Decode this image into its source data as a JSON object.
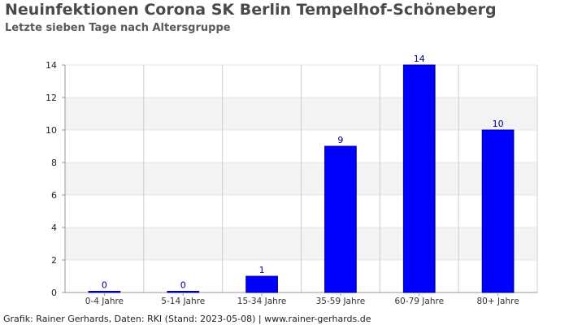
{
  "title": "Neuinfektionen Corona SK Berlin Tempelhof-Schöneberg",
  "subtitle": "Letzte sieben Tage nach Altersgruppe",
  "footer": "Grafik: Rainer Gerhards, Daten: RKI (Stand: 2023-05-08) | www.rainer-gerhards.de",
  "colors": {
    "bar": "#0000ff",
    "bar_border": "#00008b",
    "label": "#00008b",
    "band": "#f3f3f3",
    "grid": "#cccccc",
    "axis": "#999999"
  },
  "chart_data": {
    "type": "bar",
    "categories": [
      "0-4 Jahre",
      "5-14 Jahre",
      "15-34 Jahre",
      "35-59 Jahre",
      "60-79 Jahre",
      "80+ Jahre"
    ],
    "values": [
      0,
      0,
      1,
      9,
      14,
      10
    ],
    "ylim": [
      0,
      14
    ],
    "yticks": [
      0,
      2,
      4,
      6,
      8,
      10,
      12,
      14
    ],
    "grid": true,
    "legend": "none"
  }
}
